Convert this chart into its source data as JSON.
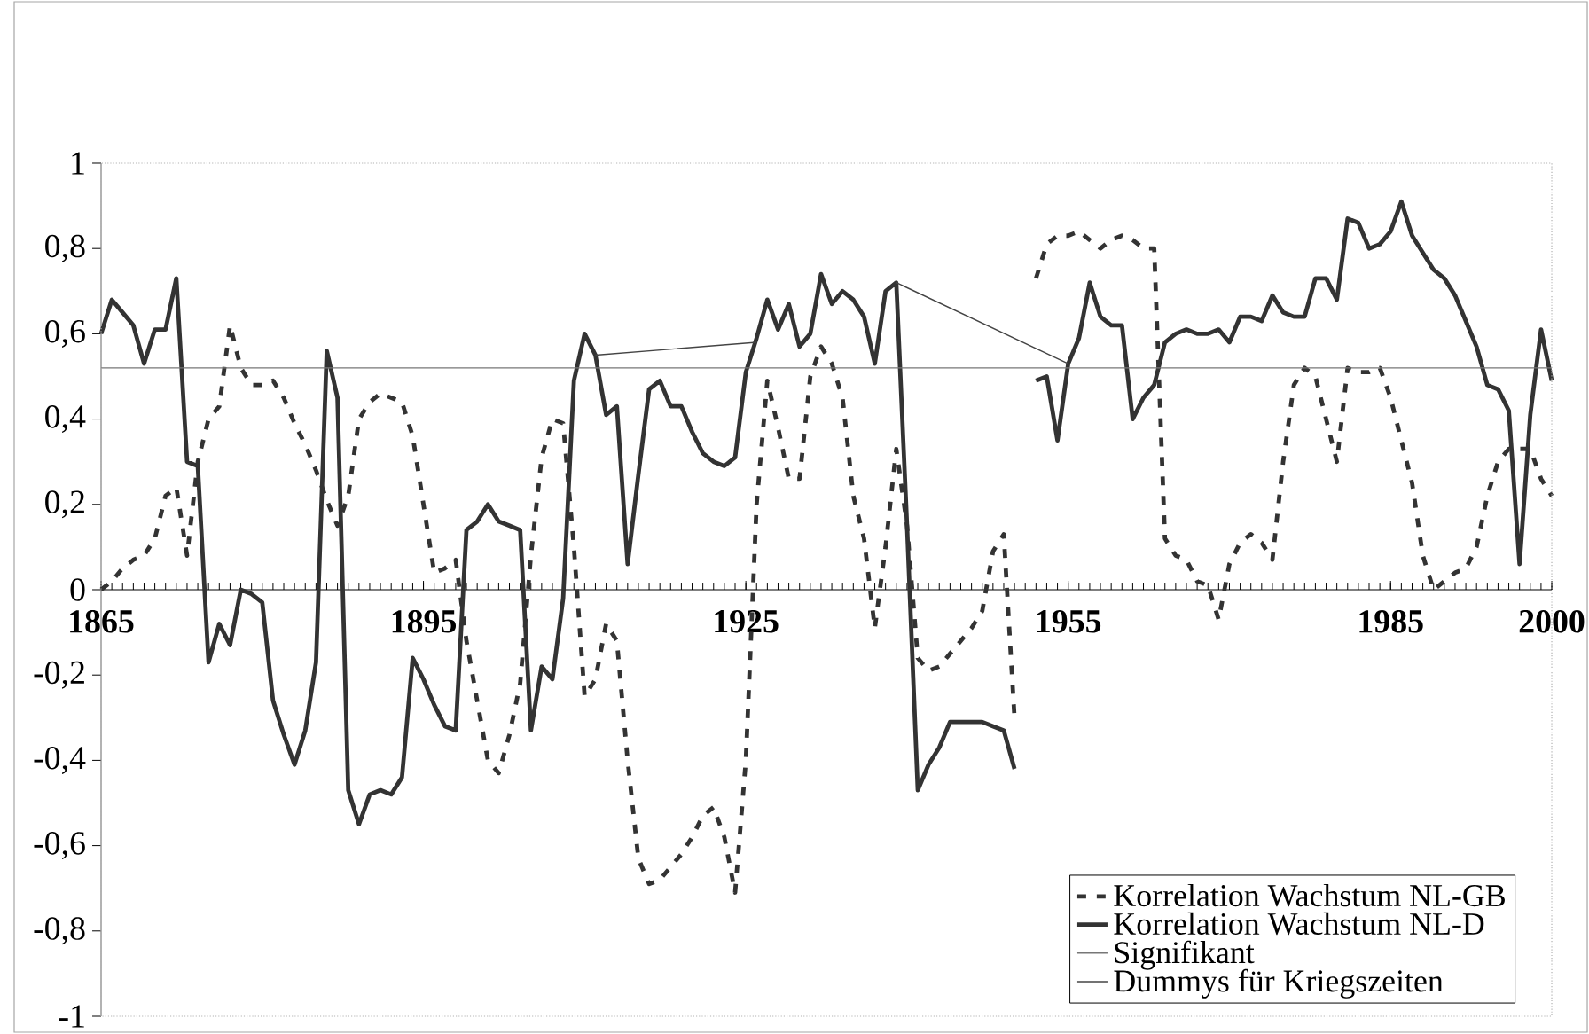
{
  "chart_data": {
    "type": "line",
    "x": [
      1865,
      1866,
      1867,
      1868,
      1869,
      1870,
      1871,
      1872,
      1873,
      1874,
      1875,
      1876,
      1877,
      1878,
      1879,
      1880,
      1881,
      1882,
      1883,
      1884,
      1885,
      1886,
      1887,
      1888,
      1889,
      1890,
      1891,
      1892,
      1893,
      1894,
      1895,
      1896,
      1897,
      1898,
      1899,
      1900,
      1901,
      1902,
      1903,
      1904,
      1905,
      1906,
      1907,
      1908,
      1909,
      1910,
      1911,
      1912,
      1913,
      1914,
      1915,
      1916,
      1917,
      1918,
      1919,
      1920,
      1921,
      1922,
      1923,
      1924,
      1925,
      1926,
      1927,
      1928,
      1929,
      1930,
      1931,
      1932,
      1933,
      1934,
      1935,
      1936,
      1937,
      1938,
      1939,
      1940,
      1941,
      1942,
      1943,
      1944,
      1945,
      1946,
      1947,
      1948,
      1949,
      1950,
      1951,
      1952,
      1953,
      1954,
      1955,
      1956,
      1957,
      1958,
      1959,
      1960,
      1961,
      1962,
      1963,
      1964,
      1965,
      1966,
      1967,
      1968,
      1969,
      1970,
      1971,
      1972,
      1973,
      1974,
      1975,
      1976,
      1977,
      1978,
      1979,
      1980,
      1981,
      1982,
      1983,
      1984,
      1985,
      1986,
      1987,
      1988,
      1989,
      1990,
      1991,
      1992,
      1993,
      1994,
      1995,
      1996,
      1997,
      1998,
      1999,
      2000
    ],
    "series": [
      {
        "name": "Korrelation Wachstum NL-GB",
        "color": "#333333",
        "line_style": "dashed",
        "values": [
          0.0,
          0.02,
          0.05,
          0.07,
          0.08,
          0.12,
          0.22,
          0.24,
          0.08,
          0.3,
          0.4,
          0.43,
          0.62,
          0.52,
          0.48,
          0.48,
          0.49,
          0.45,
          0.39,
          0.34,
          0.28,
          0.21,
          0.15,
          0.22,
          0.4,
          0.44,
          0.46,
          0.45,
          0.44,
          0.36,
          0.2,
          0.04,
          0.05,
          0.07,
          -0.12,
          -0.26,
          -0.4,
          -0.43,
          -0.34,
          -0.22,
          0.08,
          0.31,
          0.4,
          0.39,
          0.1,
          -0.25,
          -0.21,
          -0.08,
          -0.12,
          -0.4,
          -0.63,
          -0.69,
          -0.68,
          -0.65,
          -0.62,
          -0.58,
          -0.53,
          -0.51,
          -0.58,
          -0.71,
          -0.4,
          0.2,
          0.49,
          0.38,
          0.26,
          0.26,
          0.5,
          0.57,
          0.53,
          0.45,
          0.22,
          0.12,
          -0.09,
          0.1,
          0.33,
          0.15,
          -0.16,
          -0.19,
          -0.18,
          -0.15,
          -0.12,
          -0.09,
          -0.05,
          0.09,
          0.13,
          -0.3,
          null,
          0.73,
          0.81,
          0.83,
          0.83,
          0.84,
          0.82,
          0.8,
          0.82,
          0.83,
          0.82,
          0.8,
          0.8,
          0.12,
          0.08,
          0.07,
          0.02,
          0.01,
          -0.07,
          0.06,
          0.11,
          0.13,
          0.11,
          0.07,
          0.3,
          0.48,
          0.52,
          0.5,
          0.4,
          0.3,
          0.52,
          0.51,
          0.51,
          0.52,
          0.45,
          0.35,
          0.25,
          0.08,
          0.0,
          0.02,
          0.04,
          0.05,
          0.1,
          0.22,
          0.3,
          0.33,
          0.33,
          0.33,
          0.26,
          0.22
        ]
      },
      {
        "name": "Korrelation Wachstum NL-D",
        "color": "#333333",
        "line_style": "solid",
        "values": [
          0.6,
          0.68,
          0.65,
          0.62,
          0.53,
          0.61,
          0.61,
          0.73,
          0.3,
          0.29,
          -0.17,
          -0.08,
          -0.13,
          0.0,
          -0.01,
          -0.03,
          -0.26,
          -0.34,
          -0.41,
          -0.33,
          -0.17,
          0.56,
          0.45,
          -0.47,
          -0.55,
          -0.48,
          -0.47,
          -0.48,
          -0.44,
          -0.16,
          -0.21,
          -0.27,
          -0.32,
          -0.33,
          0.14,
          0.16,
          0.2,
          0.16,
          0.15,
          0.14,
          -0.33,
          -0.18,
          -0.21,
          -0.02,
          0.49,
          0.6,
          0.55,
          0.41,
          0.43,
          0.06,
          0.27,
          0.47,
          0.49,
          0.43,
          0.43,
          0.37,
          0.32,
          0.3,
          0.29,
          0.31,
          0.51,
          0.59,
          0.68,
          0.61,
          0.67,
          0.57,
          0.6,
          0.74,
          0.67,
          0.7,
          0.68,
          0.64,
          0.53,
          0.7,
          0.72,
          0.15,
          -0.47,
          -0.41,
          -0.37,
          -0.31,
          -0.31,
          -0.31,
          -0.31,
          -0.32,
          -0.33,
          -0.42,
          null,
          0.49,
          0.5,
          0.35,
          0.53,
          0.59,
          0.72,
          0.64,
          0.62,
          0.62,
          0.4,
          0.45,
          0.48,
          0.58,
          0.6,
          0.61,
          0.6,
          0.6,
          0.61,
          0.58,
          0.64,
          0.64,
          0.63,
          0.69,
          0.65,
          0.64,
          0.64,
          0.73,
          0.73,
          0.68,
          0.87,
          0.86,
          0.8,
          0.81,
          0.84,
          0.91,
          0.83,
          0.79,
          0.75,
          0.73,
          0.69,
          0.63,
          0.57,
          0.48,
          0.47,
          0.42,
          0.06,
          0.41,
          0.61,
          0.49
        ]
      },
      {
        "name": "Signifikant",
        "color": "#777777",
        "line_style": "solid",
        "x": [
          1865,
          2000
        ],
        "values": [
          0.52,
          0.52
        ]
      },
      {
        "name": "Dummys für Kriegszeiten",
        "color": "#444444",
        "line_style": "solid",
        "x": [
          1911,
          1926,
          1932,
          1939,
          1955
        ],
        "values": [
          0.55,
          0.58,
          null,
          0.72,
          0.53
        ]
      }
    ],
    "xlim": [
      1865,
      2000
    ],
    "xticks": [
      1865,
      1895,
      1925,
      1955,
      1985,
      2000
    ],
    "ylim": [
      -1,
      1
    ],
    "yticks": [
      -1,
      {
        "value": -0.8,
        "label": "-0,8"
      },
      {
        "value": -0.6,
        "label": "-0,6"
      },
      {
        "value": -0.4,
        "label": "-0,4"
      },
      {
        "value": -0.2,
        "label": "-0,2"
      },
      0,
      {
        "value": 0.2,
        "label": "0,2"
      },
      {
        "value": 0.4,
        "label": "0,4"
      },
      {
        "value": 0.6,
        "label": "0,6"
      },
      {
        "value": 0.8,
        "label": "0,8"
      },
      1
    ],
    "legend": "bottom right",
    "marker": "none"
  }
}
